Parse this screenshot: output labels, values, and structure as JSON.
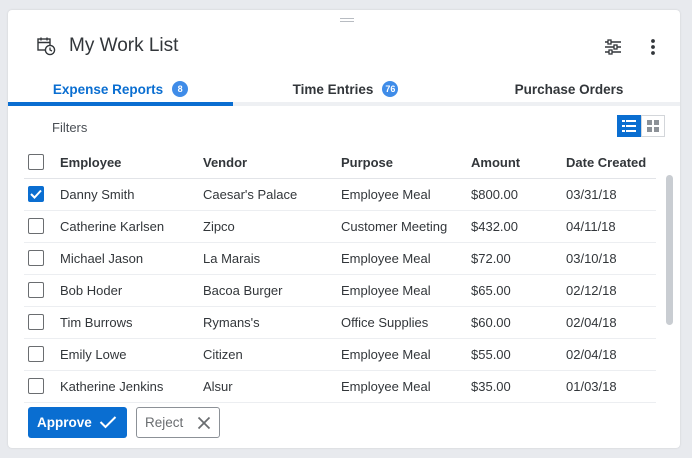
{
  "header": {
    "title": "My Work List",
    "app_icon": "calendar-clock-icon",
    "settings_icon": "sliders-icon",
    "more_icon": "more-vertical-icon"
  },
  "tabs": [
    {
      "label": "Expense Reports",
      "count": "8",
      "active": true
    },
    {
      "label": "Time Entries",
      "count": "76",
      "active": false
    },
    {
      "label": "Purchase Orders",
      "count": "",
      "active": false
    }
  ],
  "filters_label": "Filters",
  "view_toggle": {
    "list_icon": "list-view-icon",
    "grid_icon": "grid-view-icon",
    "selected": "list"
  },
  "table": {
    "columns": [
      "Employee",
      "Vendor",
      "Purpose",
      "Amount",
      "Date Created"
    ],
    "rows": [
      {
        "checked": true,
        "cells": [
          "Danny Smith",
          "Caesar's Palace",
          "Employee Meal",
          "$800.00",
          "03/31/18"
        ]
      },
      {
        "checked": false,
        "cells": [
          "Catherine Karlsen",
          "Zipco",
          "Customer Meeting",
          "$432.00",
          "04/11/18"
        ]
      },
      {
        "checked": false,
        "cells": [
          "Michael Jason",
          "La Marais",
          "Employee Meal",
          "$72.00",
          "03/10/18"
        ]
      },
      {
        "checked": false,
        "cells": [
          "Bob Hoder",
          "Bacoa Burger",
          "Employee Meal",
          "$65.00",
          "02/12/18"
        ]
      },
      {
        "checked": false,
        "cells": [
          "Tim Burrows",
          "Rymans's",
          "Office Supplies",
          "$60.00",
          "02/04/18"
        ]
      },
      {
        "checked": false,
        "cells": [
          "Emily Lowe",
          "Citizen",
          "Employee Meal",
          "$55.00",
          "02/04/18"
        ]
      },
      {
        "checked": false,
        "cells": [
          "Katherine Jenkins",
          "Alsur",
          "Employee Meal",
          "$35.00",
          "01/03/18"
        ]
      }
    ]
  },
  "actions": {
    "approve_label": "Approve",
    "reject_label": "Reject"
  },
  "colors": {
    "accent": "#0a6ed1",
    "badge": "#3f8ce8",
    "text": "#32363a",
    "background": "#e8eaee"
  }
}
